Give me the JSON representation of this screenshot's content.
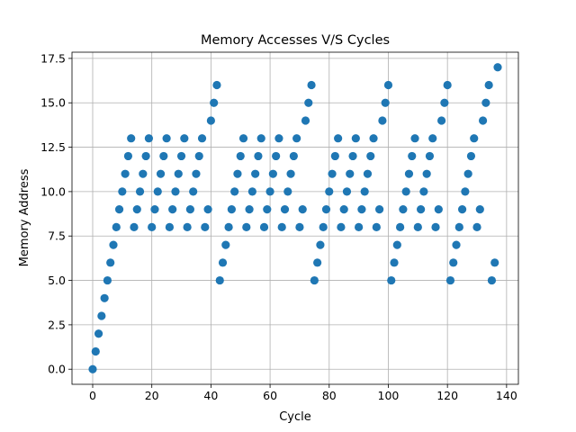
{
  "chart_data": {
    "type": "scatter",
    "title": "Memory Accesses V/S Cycles",
    "xlabel": "Cycle",
    "ylabel": "Memory Address",
    "xlim": [
      -7,
      144
    ],
    "ylim": [
      -0.85,
      17.85
    ],
    "xticks": [
      0,
      20,
      40,
      60,
      80,
      100,
      120,
      140
    ],
    "yticks": [
      0.0,
      2.5,
      5.0,
      7.5,
      10.0,
      12.5,
      15.0,
      17.5
    ],
    "xtick_labels": [
      "0",
      "20",
      "40",
      "60",
      "80",
      "100",
      "120",
      "140"
    ],
    "ytick_labels": [
      "0.0",
      "2.5",
      "5.0",
      "7.5",
      "10.0",
      "12.5",
      "15.0",
      "17.5"
    ],
    "grid": true,
    "marker_color": "#1f77b4",
    "series": [
      {
        "x": [
          0,
          1,
          2,
          3,
          4,
          5,
          6,
          7,
          8,
          9,
          10,
          11,
          12,
          13,
          14,
          15,
          16,
          17,
          18,
          19,
          20,
          21,
          22,
          23,
          24,
          25,
          26,
          27,
          28,
          29,
          30,
          31,
          32,
          33,
          34,
          35,
          36,
          37,
          38,
          39,
          40,
          41,
          42,
          43,
          44,
          45,
          46,
          47,
          48,
          49,
          50,
          51,
          52,
          53,
          54,
          55,
          56,
          57,
          58,
          59,
          60,
          61,
          62,
          63,
          64,
          65,
          66,
          67,
          68,
          69,
          70,
          71,
          72,
          73,
          74,
          75,
          76,
          77,
          78,
          79,
          80,
          81,
          82,
          83,
          84,
          85,
          86,
          87,
          88,
          89,
          90,
          91,
          92,
          93,
          94,
          95,
          96,
          97,
          98,
          99,
          100,
          101,
          102,
          103,
          104,
          105,
          106,
          107,
          108,
          109,
          110,
          111,
          112,
          113,
          114,
          115,
          116,
          117,
          118,
          119,
          120,
          121,
          122,
          123,
          124,
          125,
          126,
          127,
          128,
          129,
          130,
          131,
          132,
          133,
          134,
          135,
          136,
          137
        ],
        "y": [
          0,
          1,
          2,
          3,
          4,
          5,
          6,
          7,
          8,
          9,
          10,
          11,
          12,
          13,
          8,
          9,
          10,
          11,
          12,
          13,
          8,
          9,
          10,
          11,
          12,
          13,
          8,
          9,
          10,
          11,
          12,
          13,
          8,
          9,
          10,
          11,
          12,
          13,
          8,
          9,
          14,
          15,
          16,
          5,
          6,
          7,
          8,
          9,
          10,
          11,
          12,
          13,
          8,
          9,
          10,
          11,
          12,
          13,
          8,
          9,
          10,
          11,
          12,
          13,
          8,
          9,
          10,
          11,
          12,
          13,
          8,
          9,
          14,
          15,
          16,
          5,
          6,
          7,
          8,
          9,
          10,
          11,
          12,
          13,
          8,
          9,
          10,
          11,
          12,
          13,
          8,
          9,
          10,
          11,
          12,
          13,
          8,
          9,
          14,
          15,
          16,
          5,
          6,
          7,
          8,
          9,
          10,
          11,
          12,
          13,
          8,
          9,
          10,
          11,
          12,
          13,
          8,
          9,
          14,
          15,
          16,
          5,
          6,
          7,
          8,
          9,
          10,
          11,
          12,
          13,
          8,
          9,
          14,
          15,
          16,
          5,
          6,
          17
        ]
      }
    ]
  }
}
